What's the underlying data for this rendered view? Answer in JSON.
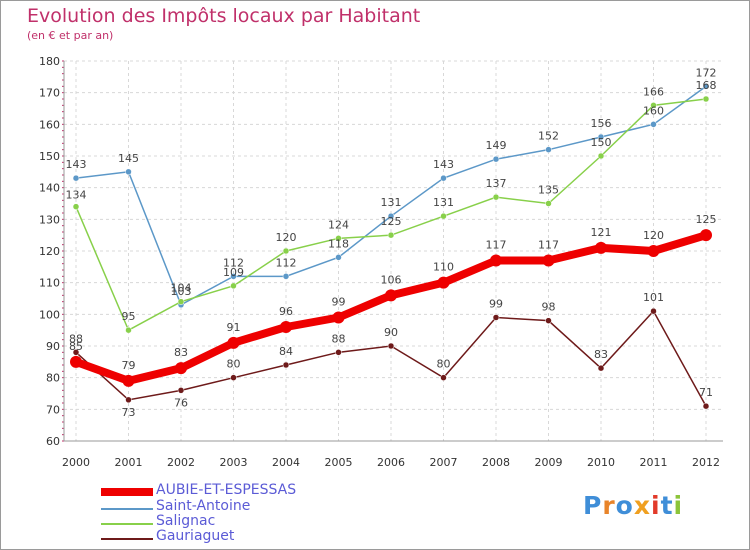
{
  "chart_data": {
    "type": "line",
    "title": "Evolution des Impôts locaux par Habitant",
    "subtitle": "(en € et par an)",
    "xlabel": "",
    "ylabel": "",
    "ylim": [
      60,
      180
    ],
    "yticks": [
      60,
      70,
      80,
      90,
      100,
      110,
      120,
      130,
      140,
      150,
      160,
      170,
      180
    ],
    "categories": [
      "2000",
      "2001",
      "2002",
      "2003",
      "2004",
      "2005",
      "2006",
      "2007",
      "2008",
      "2009",
      "2010",
      "2011",
      "2012"
    ],
    "grid": true,
    "legend_position": "bottom-left",
    "series": [
      {
        "name": "AUBIE-ET-ESPESSAS",
        "color": "#ee0000",
        "emphasis": true,
        "values": [
          85,
          79,
          83,
          91,
          96,
          99,
          106,
          110,
          117,
          117,
          121,
          120,
          125
        ]
      },
      {
        "name": "Saint-Antoine",
        "color": "#5c98c8",
        "emphasis": false,
        "values": [
          143,
          145,
          103,
          112,
          112,
          118,
          131,
          143,
          149,
          152,
          156,
          160,
          172
        ]
      },
      {
        "name": "Salignac",
        "color": "#88d04a",
        "emphasis": false,
        "values": [
          134,
          95,
          104,
          109,
          120,
          124,
          125,
          131,
          137,
          135,
          150,
          166,
          168
        ]
      },
      {
        "name": "Gauriaguet",
        "color": "#6e1a1a",
        "emphasis": false,
        "values": [
          88,
          73,
          76,
          80,
          84,
          88,
          90,
          80,
          99,
          98,
          83,
          101,
          71
        ]
      }
    ]
  },
  "logo": {
    "text": "Proxiti",
    "colors": [
      "#3f8ed8",
      "#e8842a",
      "#3f8ed8",
      "#f0a020",
      "#e23a2a",
      "#3f8ed8",
      "#8cc43a"
    ]
  }
}
